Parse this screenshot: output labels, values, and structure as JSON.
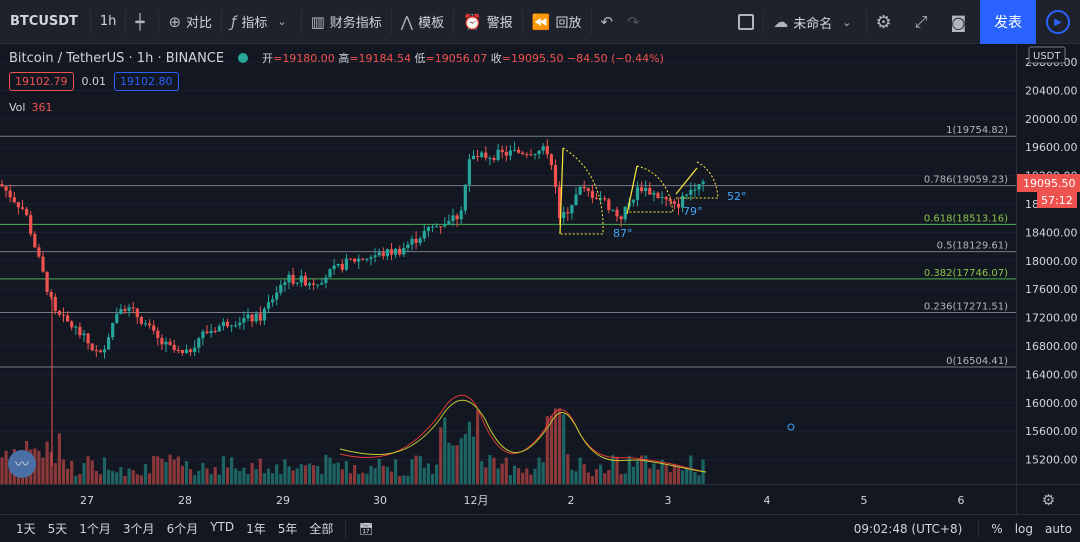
{
  "toolbar": {
    "symbol": "BTCUSDT",
    "interval": "1h",
    "compare": "对比",
    "indicators": "指标",
    "financials": "财务指标",
    "templates": "模板",
    "alert": "警报",
    "replay": "回放",
    "layout_name": "未命名",
    "publish": "发表"
  },
  "legend": {
    "title": "Bitcoin / TetherUS · 1h · BINANCE",
    "open_label": "开",
    "open": "19180.00",
    "high_label": "高",
    "high": "19184.54",
    "low_label": "低",
    "low": "19056.07",
    "close_label": "收",
    "close": "19095.50",
    "change": "−84.50 (−0.44%)",
    "sell_price": "19102.79",
    "spread": "0.01",
    "buy_price": "19102.80",
    "vol_label": "Vol",
    "vol_value": "361"
  },
  "price_axis": {
    "currency": "USDT",
    "ticks": [
      "20800.00",
      "20400.00",
      "20000.00",
      "19600.00",
      "19200.00",
      "18800.00",
      "18400.00",
      "18000.00",
      "17600.00",
      "17200.00",
      "16800.00",
      "16400.00",
      "16000.00",
      "15600.00",
      "15200.00"
    ],
    "current_price": "19095.50",
    "countdown": "57:12"
  },
  "fib_levels": [
    {
      "label": "1(19754.82)"
    },
    {
      "label": "0.786(19059.23)"
    },
    {
      "label": "0.618(18513.16)"
    },
    {
      "label": "0.5(18129.61)"
    },
    {
      "label": "0.382(17746.07)"
    },
    {
      "label": "0.236(17271.51)"
    },
    {
      "label": "0(16504.41)"
    }
  ],
  "angles": [
    "87°",
    "79°",
    "52°"
  ],
  "time_axis": {
    "ticks": [
      "27",
      "28",
      "29",
      "30",
      "12月",
      "2",
      "3",
      "4",
      "5",
      "6"
    ]
  },
  "ranges": [
    "1天",
    "5天",
    "1个月",
    "3个月",
    "6个月",
    "YTD",
    "1年",
    "5年",
    "全部"
  ],
  "status": {
    "clock": "09:02:48 (UTC+8)",
    "percent": "%",
    "log": "log",
    "auto": "auto"
  },
  "colors": {
    "up": "#26a69a",
    "down": "#ef5350",
    "accent": "#2962ff",
    "fib_green": "#4caf50",
    "fib_gray": "#787b86"
  }
}
